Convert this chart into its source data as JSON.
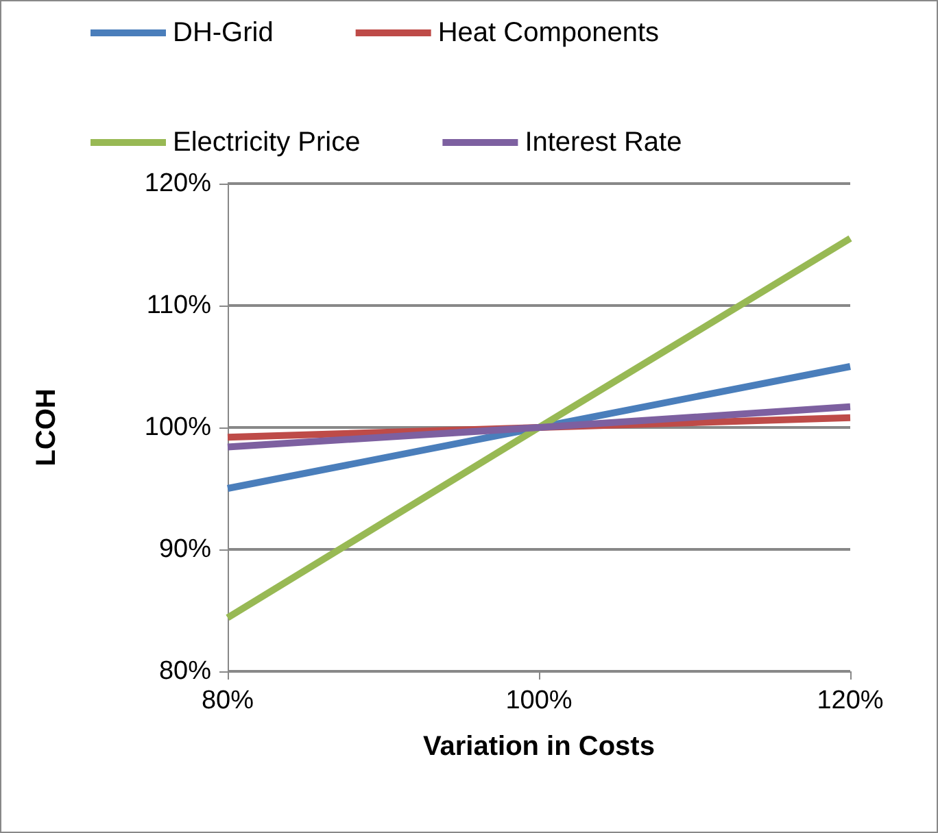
{
  "chart_data": {
    "type": "line",
    "xlabel": "Variation in Costs",
    "ylabel": "LCOH",
    "x": [
      80,
      100,
      120
    ],
    "series": [
      {
        "name": "DH-Grid",
        "color": "#4a7ebb",
        "values": [
          95,
          100,
          105
        ]
      },
      {
        "name": "Heat Components",
        "color": "#be4b48",
        "values": [
          99.2,
          100,
          100.8
        ]
      },
      {
        "name": "Electricity Price",
        "color": "#98b954",
        "values": [
          84.4,
          100,
          115.5
        ]
      },
      {
        "name": "Interest Rate",
        "color": "#7d60a0",
        "values": [
          98.4,
          100,
          101.7
        ]
      }
    ],
    "xlim": [
      80,
      120
    ],
    "xticks": [
      {
        "value": 80,
        "label": "80%"
      },
      {
        "value": 100,
        "label": "100%"
      },
      {
        "value": 120,
        "label": "120%"
      }
    ],
    "ylim": [
      80,
      120
    ],
    "yticks": [
      {
        "value": 80,
        "label": "80%"
      },
      {
        "value": 90,
        "label": "90%"
      },
      {
        "value": 100,
        "label": "100%"
      },
      {
        "value": 110,
        "label": "110%"
      },
      {
        "value": 120,
        "label": "120%"
      }
    ],
    "grid": "y",
    "legend": "top",
    "marker": "none",
    "line_style": "solid"
  }
}
